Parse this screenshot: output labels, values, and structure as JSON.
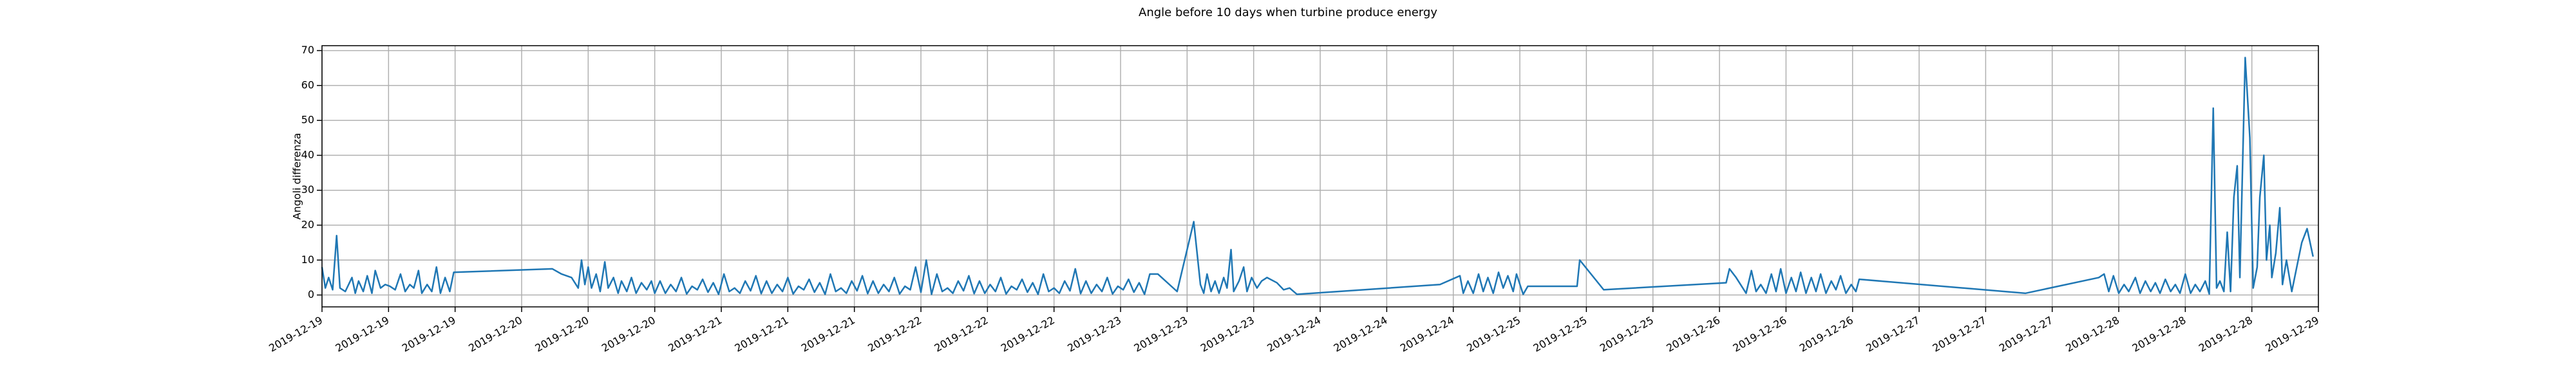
{
  "chart_data": {
    "type": "line",
    "title": "Angle before 10 days when turbine produce energy",
    "y_label": "Angoli differenza",
    "color": "#1f77b4",
    "grid": true,
    "xlim": [
      0,
      30
    ],
    "ylim": [
      -3.4,
      71.4
    ],
    "yticks": [
      0,
      10,
      20,
      30,
      40,
      50,
      60,
      70
    ],
    "xticks": [
      {
        "value": 0,
        "label": "2019-12-19"
      },
      {
        "value": 1,
        "label": "2019-12-19"
      },
      {
        "value": 2,
        "label": "2019-12-19"
      },
      {
        "value": 3,
        "label": "2019-12-20"
      },
      {
        "value": 4,
        "label": "2019-12-20"
      },
      {
        "value": 5,
        "label": "2019-12-20"
      },
      {
        "value": 6,
        "label": "2019-12-21"
      },
      {
        "value": 7,
        "label": "2019-12-21"
      },
      {
        "value": 8,
        "label": "2019-12-21"
      },
      {
        "value": 9,
        "label": "2019-12-22"
      },
      {
        "value": 10,
        "label": "2019-12-22"
      },
      {
        "value": 11,
        "label": "2019-12-22"
      },
      {
        "value": 12,
        "label": "2019-12-23"
      },
      {
        "value": 13,
        "label": "2019-12-23"
      },
      {
        "value": 14,
        "label": "2019-12-23"
      },
      {
        "value": 15,
        "label": "2019-12-24"
      },
      {
        "value": 16,
        "label": "2019-12-24"
      },
      {
        "value": 17,
        "label": "2019-12-24"
      },
      {
        "value": 18,
        "label": "2019-12-25"
      },
      {
        "value": 19,
        "label": "2019-12-25"
      },
      {
        "value": 20,
        "label": "2019-12-25"
      },
      {
        "value": 21,
        "label": "2019-12-26"
      },
      {
        "value": 22,
        "label": "2019-12-26"
      },
      {
        "value": 23,
        "label": "2019-12-26"
      },
      {
        "value": 24,
        "label": "2019-12-27"
      },
      {
        "value": 25,
        "label": "2019-12-27"
      },
      {
        "value": 26,
        "label": "2019-12-27"
      },
      {
        "value": 27,
        "label": "2019-12-28"
      },
      {
        "value": 28,
        "label": "2019-12-28"
      },
      {
        "value": 29,
        "label": "2019-12-28"
      },
      {
        "value": 30,
        "label": "2019-12-29"
      }
    ],
    "x": [
      0,
      0.05,
      0.1,
      0.16,
      0.22,
      0.27,
      0.35,
      0.45,
      0.5,
      0.55,
      0.62,
      0.68,
      0.75,
      0.8,
      0.88,
      0.95,
      1.02,
      1.1,
      1.18,
      1.25,
      1.32,
      1.38,
      1.45,
      1.5,
      1.58,
      1.65,
      1.72,
      1.78,
      1.85,
      1.92,
      1.98,
      3.46,
      3.6,
      3.75,
      3.85,
      3.9,
      3.95,
      4.0,
      4.05,
      4.12,
      4.18,
      4.25,
      4.3,
      4.38,
      4.45,
      4.5,
      4.58,
      4.65,
      4.72,
      4.8,
      4.88,
      4.95,
      5.0,
      5.08,
      5.16,
      5.24,
      5.32,
      5.4,
      5.48,
      5.56,
      5.64,
      5.72,
      5.8,
      5.88,
      5.96,
      6.04,
      6.12,
      6.2,
      6.28,
      6.36,
      6.44,
      6.52,
      6.6,
      6.68,
      6.76,
      6.84,
      6.92,
      7.0,
      7.08,
      7.16,
      7.24,
      7.32,
      7.4,
      7.48,
      7.56,
      7.64,
      7.72,
      7.8,
      7.88,
      7.96,
      8.04,
      8.12,
      8.2,
      8.28,
      8.36,
      8.44,
      8.52,
      8.6,
      8.68,
      8.76,
      8.84,
      8.92,
      9.0,
      9.08,
      9.16,
      9.24,
      9.32,
      9.4,
      9.48,
      9.56,
      9.64,
      9.72,
      9.8,
      9.88,
      9.96,
      10.04,
      10.12,
      10.2,
      10.28,
      10.36,
      10.44,
      10.52,
      10.6,
      10.68,
      10.76,
      10.84,
      10.92,
      11.0,
      11.08,
      11.16,
      11.24,
      11.32,
      11.4,
      11.48,
      11.56,
      11.64,
      11.72,
      11.8,
      11.88,
      11.96,
      12.04,
      12.12,
      12.2,
      12.28,
      12.36,
      12.44,
      12.56,
      12.85,
      13.1,
      13.2,
      13.25,
      13.3,
      13.36,
      13.42,
      13.48,
      13.55,
      13.6,
      13.66,
      13.7,
      13.78,
      13.85,
      13.9,
      13.97,
      14.05,
      14.12,
      14.2,
      14.35,
      14.45,
      14.54,
      14.65,
      16.8,
      17.1,
      17.15,
      17.22,
      17.3,
      17.38,
      17.45,
      17.52,
      17.6,
      17.68,
      17.75,
      17.82,
      17.9,
      17.95,
      18.05,
      18.12,
      18.6,
      18.86,
      18.9,
      19.26,
      21.1,
      21.15,
      21.25,
      21.35,
      21.4,
      21.48,
      21.55,
      21.62,
      21.7,
      21.78,
      21.85,
      21.92,
      22.0,
      22.08,
      22.15,
      22.22,
      22.3,
      22.38,
      22.45,
      22.52,
      22.6,
      22.68,
      22.75,
      22.82,
      22.9,
      22.98,
      23.05,
      23.1,
      25.6,
      26.7,
      26.78,
      26.85,
      26.92,
      27.0,
      27.08,
      27.15,
      27.25,
      27.32,
      27.4,
      27.48,
      27.55,
      27.62,
      27.7,
      27.78,
      27.85,
      27.92,
      28.0,
      28.08,
      28.15,
      28.22,
      28.3,
      28.36,
      28.42,
      28.47,
      28.52,
      28.58,
      28.63,
      28.68,
      28.73,
      28.78,
      28.82,
      28.9,
      28.97,
      29.02,
      29.08,
      29.12,
      29.18,
      29.22,
      29.27,
      29.3,
      29.36,
      29.42,
      29.46,
      29.52,
      29.6,
      29.75,
      29.83,
      29.92
    ],
    "values": [
      8,
      2,
      5,
      1.5,
      17,
      2,
      1,
      5,
      0.5,
      4,
      1,
      5.5,
      0.5,
      7,
      2,
      3,
      2.5,
      1.5,
      6,
      1,
      3,
      2,
      7,
      0.5,
      3,
      1,
      8,
      0.5,
      5,
      1,
      6.5,
      7.5,
      6,
      5,
      2,
      10,
      3,
      8,
      2,
      6,
      1,
      9.5,
      2,
      5,
      0.5,
      4,
      1,
      5,
      0.5,
      3.5,
      1.5,
      4,
      0.5,
      4,
      0.5,
      3,
      1,
      5,
      0.3,
      2.5,
      1.5,
      4.5,
      0.8,
      3.5,
      0.2,
      6,
      1,
      2,
      0.5,
      4,
      1.2,
      5.5,
      0.4,
      4,
      0.5,
      3,
      1,
      5,
      0.3,
      2.5,
      1.5,
      4.5,
      0.8,
      3.5,
      0.2,
      6,
      1,
      2,
      0.5,
      4,
      1.2,
      5.5,
      0.4,
      4,
      0.5,
      3,
      1,
      5,
      0.3,
      2.5,
      1.5,
      8,
      0.8,
      10,
      0.2,
      6,
      1,
      2,
      0.5,
      4,
      1.2,
      5.5,
      0.4,
      4,
      0.5,
      3,
      1,
      5,
      0.3,
      2.5,
      1.5,
      4.5,
      0.8,
      3.5,
      0.2,
      6,
      1,
      2,
      0.5,
      4,
      1.2,
      7.5,
      0.4,
      4,
      0.5,
      3,
      1,
      5,
      0.3,
      2.5,
      1.5,
      4.5,
      0.8,
      3.5,
      0.2,
      6,
      6,
      1,
      21,
      3,
      0.5,
      6,
      1,
      4,
      0.5,
      5,
      2,
      13,
      1,
      4,
      8,
      1,
      5,
      2,
      4,
      5,
      3.5,
      1.5,
      2,
      0.2,
      3,
      5.5,
      0.5,
      4,
      0.5,
      6,
      1,
      5,
      0.5,
      6.5,
      2,
      5.5,
      1,
      6,
      0.2,
      2.5,
      2.5,
      2.5,
      10,
      1.5,
      3.5,
      7.5,
      5,
      2,
      0.5,
      7,
      1,
      3,
      0.5,
      6,
      1,
      7.5,
      0.5,
      5,
      1,
      6.5,
      0.5,
      5,
      1,
      6,
      0.5,
      4,
      1.5,
      5.5,
      0.5,
      3,
      1,
      4.5,
      0.5,
      5,
      6,
      1,
      5.5,
      0.5,
      3,
      1,
      5,
      0.5,
      4,
      1,
      3.5,
      0.5,
      4.5,
      1,
      3,
      0.5,
      6,
      0.5,
      3,
      1,
      4,
      0.3,
      53.5,
      2,
      4,
      1,
      18,
      1,
      28,
      37,
      5,
      68,
      45,
      2,
      8,
      28,
      40,
      10,
      20,
      5,
      12,
      25,
      3,
      10,
      1,
      15,
      19,
      11
    ]
  }
}
